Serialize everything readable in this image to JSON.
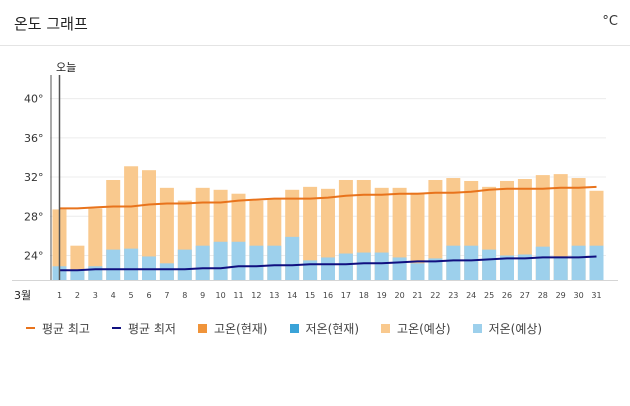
{
  "header": {
    "title": "온도 그래프",
    "unit": "°C"
  },
  "colors": {
    "high_forecast": "#f9c98e",
    "low_forecast": "#9dd0ec",
    "high_current": "#f0943a",
    "low_current": "#3aa3d8",
    "avg_high": "#e8731c",
    "avg_low": "#101080"
  },
  "chart_data": {
    "type": "bar",
    "title": "온도 그래프",
    "xlabel": "3월",
    "ylabel": "°C",
    "ylim": [
      21.5,
      42
    ],
    "yticks": [
      24,
      28,
      32,
      36,
      40
    ],
    "ytick_labels": [
      "24°",
      "28°",
      "32°",
      "36°",
      "40°"
    ],
    "today_label": "오늘",
    "today_position": "between day 1 and day 2 (left edge)",
    "categories": [
      "1",
      "2",
      "3",
      "4",
      "5",
      "6",
      "7",
      "8",
      "9",
      "10",
      "11",
      "12",
      "13",
      "14",
      "15",
      "16",
      "17",
      "18",
      "19",
      "20",
      "21",
      "22",
      "23",
      "24",
      "25",
      "26",
      "27",
      "28",
      "29",
      "30",
      "31"
    ],
    "series": [
      {
        "name": "고온(예상)",
        "kind": "bar",
        "values": [
          28.7,
          25.0,
          28.8,
          31.7,
          33.1,
          32.7,
          30.9,
          29.6,
          30.9,
          30.7,
          30.3,
          29.6,
          29.8,
          30.7,
          31.0,
          30.8,
          31.7,
          31.7,
          30.9,
          30.9,
          30.4,
          31.7,
          31.9,
          31.6,
          31.0,
          31.6,
          31.8,
          32.2,
          32.3,
          31.9,
          30.6
        ]
      },
      {
        "name": "저온(예상)",
        "kind": "bar",
        "values": [
          22.9,
          22.5,
          22.9,
          24.6,
          24.7,
          23.9,
          23.2,
          24.6,
          25.0,
          25.4,
          25.4,
          25.0,
          25.0,
          25.9,
          23.5,
          23.8,
          24.2,
          24.3,
          24.3,
          23.8,
          23.2,
          23.7,
          25.0,
          25.0,
          24.6,
          24.0,
          24.1,
          24.9,
          23.9,
          25.0,
          25.0
        ]
      },
      {
        "name": "평균 최고",
        "kind": "line",
        "values": [
          28.8,
          28.8,
          28.9,
          29.0,
          29.0,
          29.2,
          29.3,
          29.3,
          29.4,
          29.4,
          29.6,
          29.7,
          29.8,
          29.8,
          29.8,
          29.9,
          30.1,
          30.2,
          30.2,
          30.3,
          30.3,
          30.4,
          30.4,
          30.5,
          30.7,
          30.8,
          30.8,
          30.8,
          30.9,
          30.9,
          31.0
        ]
      },
      {
        "name": "평균 최저",
        "kind": "line",
        "values": [
          22.5,
          22.5,
          22.6,
          22.6,
          22.6,
          22.6,
          22.6,
          22.6,
          22.7,
          22.7,
          22.9,
          22.9,
          23.0,
          23.0,
          23.1,
          23.1,
          23.1,
          23.2,
          23.2,
          23.3,
          23.4,
          23.4,
          23.5,
          23.5,
          23.6,
          23.7,
          23.7,
          23.8,
          23.8,
          23.8,
          23.9
        ]
      }
    ]
  },
  "legend": [
    {
      "label": "평균 최고",
      "kind": "line",
      "color_key": "avg_high"
    },
    {
      "label": "평균 최저",
      "kind": "line",
      "color_key": "avg_low"
    },
    {
      "label": "고온(현재)",
      "kind": "box",
      "color_key": "high_current"
    },
    {
      "label": "저온(현재)",
      "kind": "box",
      "color_key": "low_current"
    },
    {
      "label": "고온(예상)",
      "kind": "box",
      "color_key": "high_forecast"
    },
    {
      "label": "저온(예상)",
      "kind": "box",
      "color_key": "low_forecast"
    }
  ]
}
